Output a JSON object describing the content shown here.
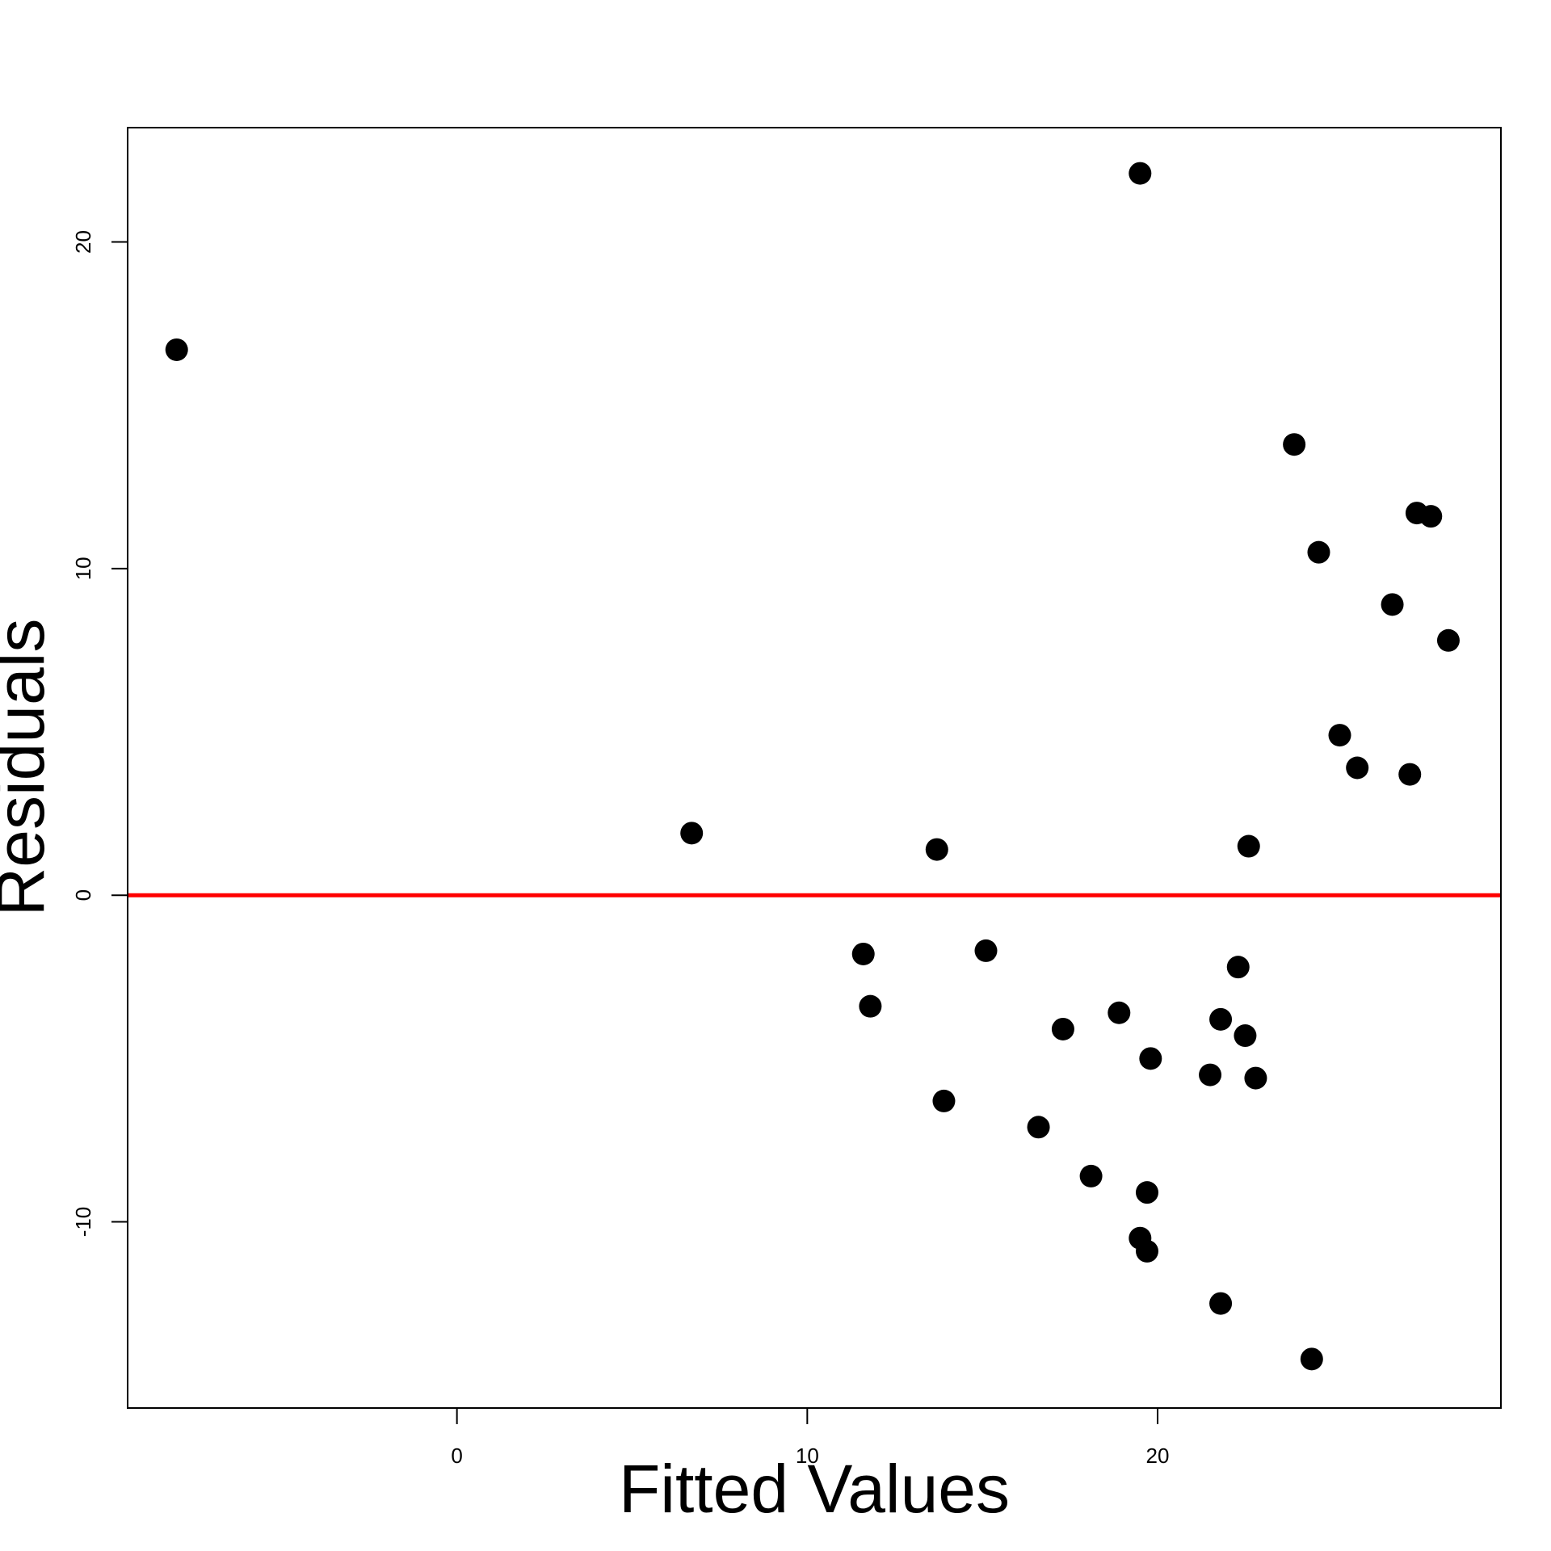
{
  "chart_data": {
    "type": "scatter",
    "title": "",
    "xlabel": "Fitted Values",
    "ylabel": "Residuals",
    "xlim": [
      -9.4,
      29.8
    ],
    "ylim": [
      -15.7,
      23.5
    ],
    "x_ticks": [
      0,
      10,
      20
    ],
    "y_ticks": [
      -10,
      0,
      10,
      20
    ],
    "grid": false,
    "legend": "none",
    "colors": {
      "points": "#000000",
      "reference_line": "#ff0000",
      "axes": "#000000"
    },
    "reference_line": {
      "orientation": "horizontal",
      "y": 0
    },
    "points": [
      {
        "x": -8.0,
        "y": 16.7
      },
      {
        "x": 6.7,
        "y": 1.9
      },
      {
        "x": 11.6,
        "y": -1.8
      },
      {
        "x": 11.8,
        "y": -3.4
      },
      {
        "x": 13.7,
        "y": 1.4
      },
      {
        "x": 13.9,
        "y": -6.3
      },
      {
        "x": 15.1,
        "y": -1.7
      },
      {
        "x": 16.6,
        "y": -7.1
      },
      {
        "x": 17.3,
        "y": -4.1
      },
      {
        "x": 18.1,
        "y": -8.6
      },
      {
        "x": 18.9,
        "y": -3.6
      },
      {
        "x": 19.5,
        "y": 22.1
      },
      {
        "x": 19.5,
        "y": -10.5
      },
      {
        "x": 19.7,
        "y": -10.9
      },
      {
        "x": 19.7,
        "y": -9.1
      },
      {
        "x": 19.8,
        "y": -5.0
      },
      {
        "x": 21.5,
        "y": -5.5
      },
      {
        "x": 21.8,
        "y": -3.8
      },
      {
        "x": 21.8,
        "y": -12.5
      },
      {
        "x": 22.3,
        "y": -2.2
      },
      {
        "x": 22.5,
        "y": -4.3
      },
      {
        "x": 22.6,
        "y": 1.5
      },
      {
        "x": 22.8,
        "y": -5.6
      },
      {
        "x": 23.9,
        "y": 13.8
      },
      {
        "x": 24.4,
        "y": -14.2
      },
      {
        "x": 24.6,
        "y": 10.5
      },
      {
        "x": 25.2,
        "y": 4.9
      },
      {
        "x": 25.7,
        "y": 3.9
      },
      {
        "x": 26.7,
        "y": 8.9
      },
      {
        "x": 27.2,
        "y": 3.7
      },
      {
        "x": 27.4,
        "y": 11.7
      },
      {
        "x": 27.8,
        "y": 11.6
      },
      {
        "x": 28.3,
        "y": 7.8
      }
    ]
  }
}
